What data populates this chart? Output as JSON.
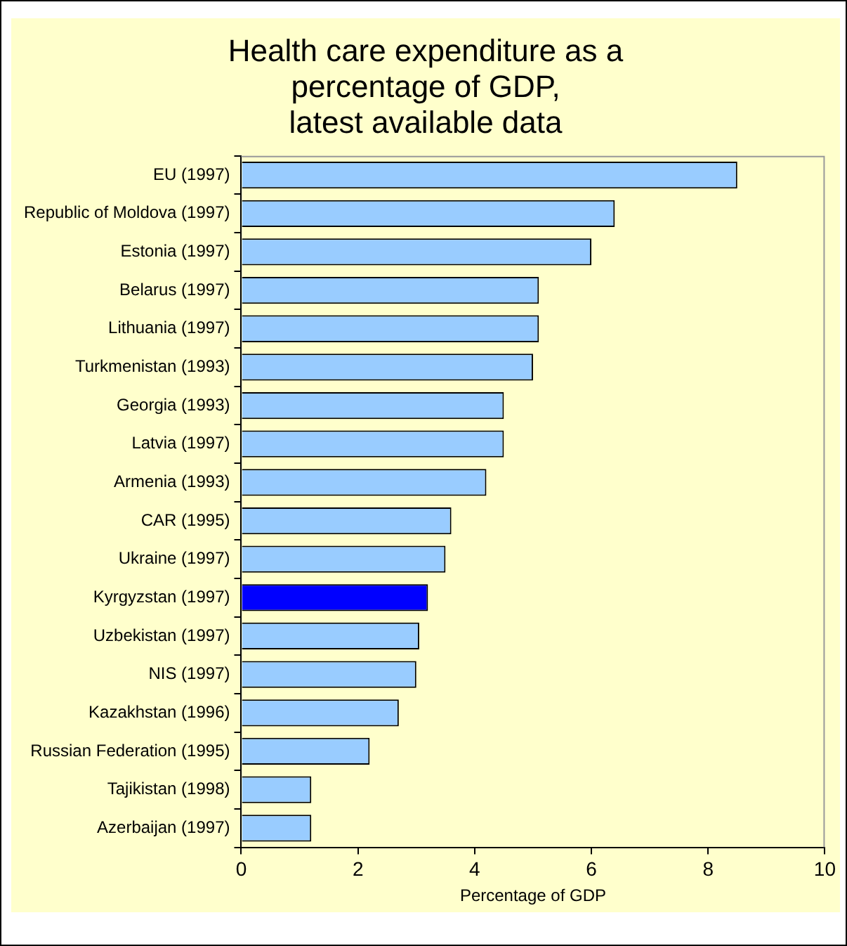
{
  "chart_data": {
    "type": "bar",
    "orientation": "horizontal",
    "title": "Health care expenditure as a\npercentage of GDP,\nlatest available data",
    "xlabel": "Percentage of GDP",
    "categories": [
      "EU (1997)",
      "Republic of Moldova (1997)",
      "Estonia (1997)",
      "Belarus (1997)",
      "Lithuania (1997)",
      "Turkmenistan (1993)",
      "Georgia (1993)",
      "Latvia (1997)",
      "Armenia (1993)",
      "CAR (1995)",
      "Ukraine (1997)",
      "Kyrgyzstan (1997)",
      "Uzbekistan (1997)",
      "NIS (1997)",
      "Kazakhstan (1996)",
      "Russian Federation (1995)",
      "Tajikistan (1998)",
      "Azerbaijan (1997)"
    ],
    "values": [
      8.5,
      6.4,
      6.0,
      5.1,
      5.1,
      5.0,
      4.5,
      4.5,
      4.2,
      3.6,
      3.5,
      3.2,
      3.05,
      3.0,
      2.7,
      2.2,
      1.2,
      1.2
    ],
    "colors": [
      "#99ccff",
      "#99ccff",
      "#99ccff",
      "#99ccff",
      "#99ccff",
      "#99ccff",
      "#99ccff",
      "#99ccff",
      "#99ccff",
      "#99ccff",
      "#99ccff",
      "#0000ff",
      "#99ccff",
      "#99ccff",
      "#99ccff",
      "#99ccff",
      "#99ccff",
      "#99ccff"
    ],
    "xlim": [
      0,
      10
    ],
    "xticks": [
      0,
      2,
      4,
      6,
      8,
      10
    ],
    "grid": false,
    "legend": false
  }
}
